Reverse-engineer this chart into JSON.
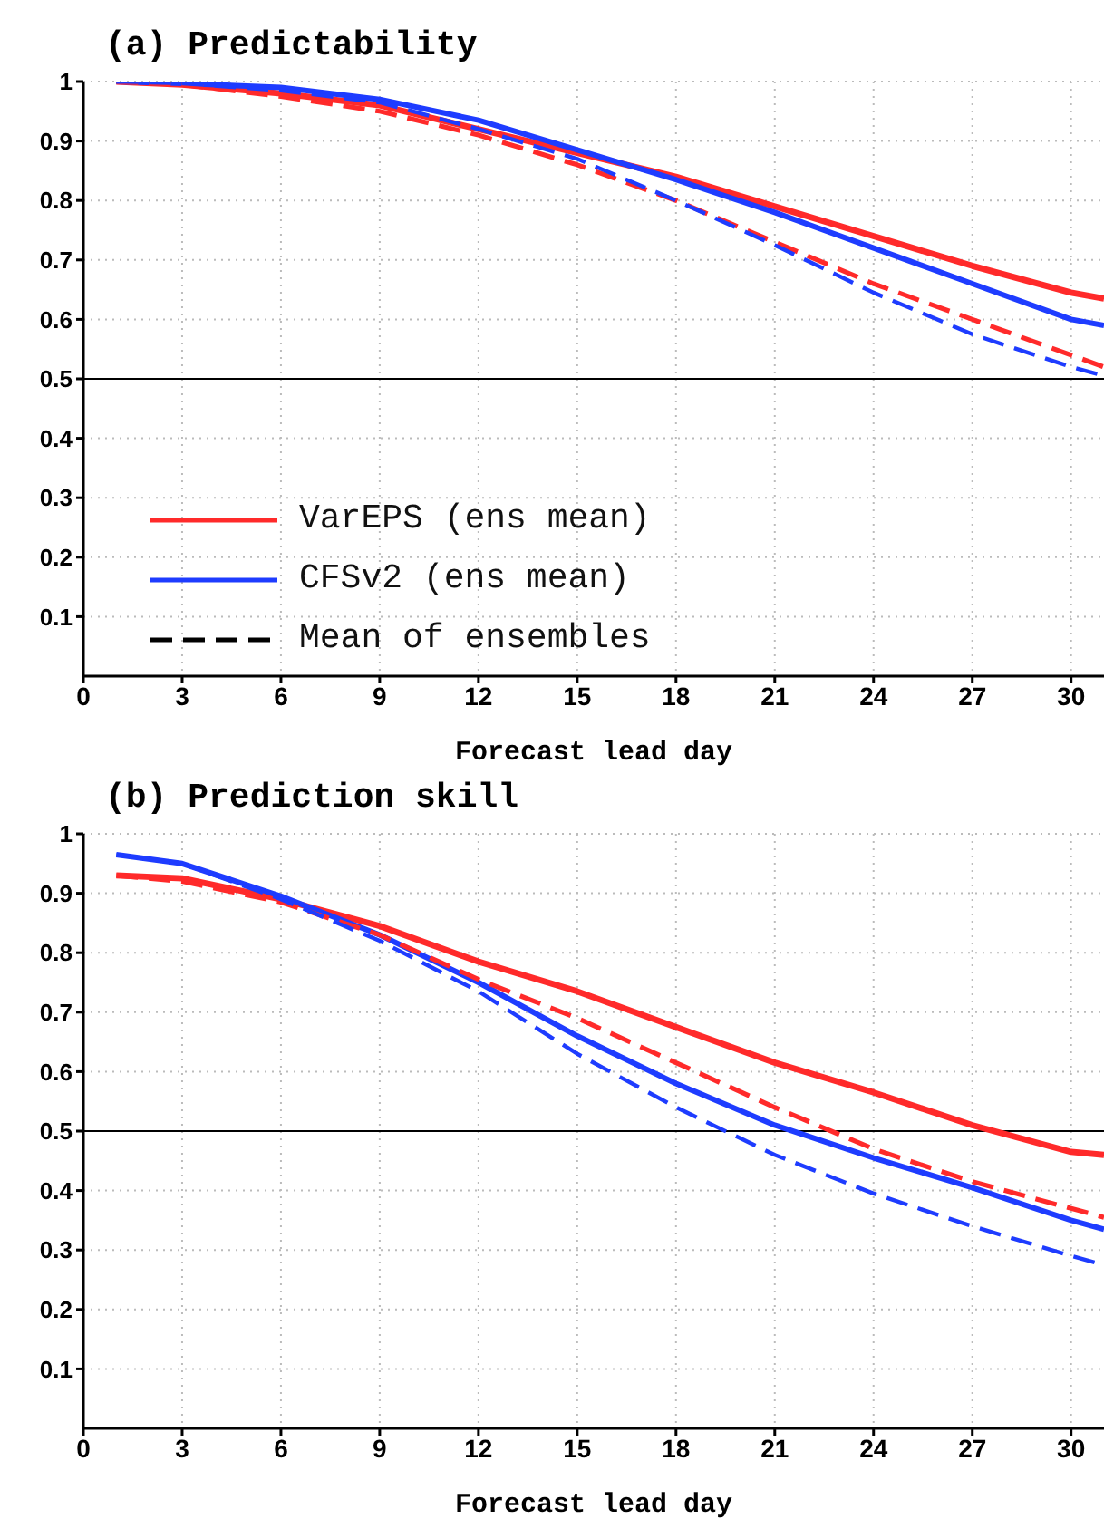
{
  "chart_data": [
    {
      "type": "line",
      "title": "(a) Predictability",
      "xlabel": "Forecast lead day",
      "x": [
        1,
        3,
        6,
        9,
        12,
        15,
        18,
        21,
        24,
        27,
        30,
        31
      ],
      "xlim": [
        0,
        31
      ],
      "xticks": [
        0,
        3,
        6,
        9,
        12,
        15,
        18,
        21,
        24,
        27,
        30
      ],
      "ylim": [
        0,
        1
      ],
      "yticks": [
        0.1,
        0.2,
        0.3,
        0.4,
        0.5,
        0.6,
        0.7,
        0.8,
        0.9,
        1
      ],
      "grid": true,
      "legend": "bottom left",
      "ref_lines": [
        {
          "axis": "y",
          "value": 0.5
        }
      ],
      "annotations": [
        "Mean of ensembles"
      ],
      "series": [
        {
          "name": "VarEPS (ens mean)",
          "color": "#ff2a2a",
          "line_style": "solid",
          "values": [
            1.0,
            0.995,
            0.98,
            0.96,
            0.92,
            0.88,
            0.84,
            0.79,
            0.74,
            0.69,
            0.645,
            0.635
          ]
        },
        {
          "name": "CFSv2 (ens mean)",
          "color": "#1e3cff",
          "line_style": "solid",
          "values": [
            1.0,
            0.997,
            0.99,
            0.97,
            0.935,
            0.885,
            0.835,
            0.78,
            0.72,
            0.66,
            0.6,
            0.59
          ]
        },
        {
          "color": "#ff2a2a",
          "line_style": "dashed",
          "values": [
            1.0,
            0.995,
            0.975,
            0.95,
            0.91,
            0.86,
            0.8,
            0.73,
            0.66,
            0.6,
            0.54,
            0.52
          ]
        },
        {
          "color": "#1e3cff",
          "line_style": "dashed",
          "values": [
            1.0,
            0.997,
            0.985,
            0.965,
            0.92,
            0.87,
            0.8,
            0.725,
            0.645,
            0.575,
            0.52,
            0.505
          ]
        }
      ]
    },
    {
      "type": "line",
      "title": "(b) Prediction skill",
      "xlabel": "Forecast lead day",
      "x": [
        1,
        3,
        6,
        9,
        12,
        15,
        18,
        21,
        24,
        27,
        30,
        31
      ],
      "xlim": [
        0,
        31
      ],
      "xticks": [
        0,
        3,
        6,
        9,
        12,
        15,
        18,
        21,
        24,
        27,
        30
      ],
      "ylim": [
        0,
        1
      ],
      "yticks": [
        0.1,
        0.2,
        0.3,
        0.4,
        0.5,
        0.6,
        0.7,
        0.8,
        0.9,
        1
      ],
      "grid": true,
      "ref_lines": [
        {
          "axis": "y",
          "value": 0.5
        }
      ],
      "series": [
        {
          "color": "#ff2a2a",
          "line_style": "solid",
          "values": [
            0.93,
            0.925,
            0.89,
            0.845,
            0.785,
            0.735,
            0.675,
            0.615,
            0.565,
            0.51,
            0.465,
            0.46
          ]
        },
        {
          "color": "#1e3cff",
          "line_style": "solid",
          "values": [
            0.965,
            0.95,
            0.895,
            0.83,
            0.75,
            0.66,
            0.58,
            0.51,
            0.455,
            0.405,
            0.35,
            0.335
          ]
        },
        {
          "color": "#ff2a2a",
          "line_style": "dashed",
          "values": [
            0.93,
            0.92,
            0.885,
            0.83,
            0.755,
            0.69,
            0.615,
            0.54,
            0.47,
            0.415,
            0.37,
            0.355
          ]
        },
        {
          "color": "#1e3cff",
          "line_style": "dashed",
          "values": [
            0.965,
            0.95,
            0.89,
            0.82,
            0.735,
            0.63,
            0.54,
            0.46,
            0.395,
            0.34,
            0.29,
            0.275
          ]
        }
      ]
    }
  ]
}
